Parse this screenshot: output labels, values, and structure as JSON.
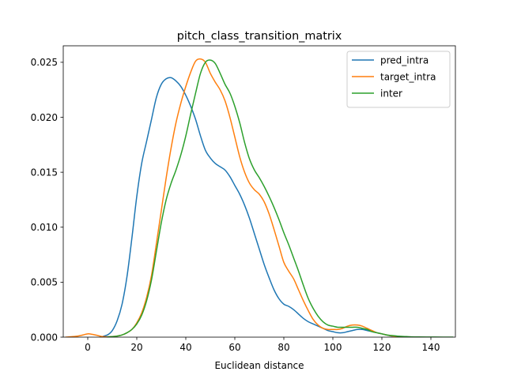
{
  "chart_data": {
    "type": "line",
    "title": "pitch_class_transition_matrix",
    "xlabel": "Euclidean distance",
    "ylabel": "",
    "xlim": [
      -10,
      150
    ],
    "ylim": [
      0,
      0.0265
    ],
    "xticks": [
      0,
      20,
      40,
      60,
      80,
      100,
      120,
      140
    ],
    "yticks": [
      0.0,
      0.005,
      0.01,
      0.015,
      0.02,
      0.025
    ],
    "ytick_format_decimals": 3,
    "grid": false,
    "legend": "top-right",
    "series": [
      {
        "name": "pred_intra",
        "color": "#1f77b4",
        "x": [
          5,
          8,
          10,
          12,
          14,
          16,
          18,
          20,
          22,
          24,
          26,
          28,
          30,
          32,
          34,
          36,
          38,
          40,
          42,
          44,
          46,
          48,
          50,
          52,
          54,
          56,
          58,
          60,
          62,
          64,
          66,
          68,
          70,
          72,
          74,
          76,
          78,
          80,
          82,
          84,
          86,
          88,
          90,
          92,
          94,
          96,
          98,
          100,
          102,
          104,
          106,
          108,
          110,
          112,
          114,
          116,
          118,
          120,
          122,
          124,
          126,
          128,
          130,
          132,
          135
        ],
        "y": [
          0.0,
          0.0002,
          0.0006,
          0.0015,
          0.003,
          0.0055,
          0.009,
          0.0128,
          0.0158,
          0.0178,
          0.0198,
          0.0218,
          0.023,
          0.0235,
          0.0236,
          0.0233,
          0.0228,
          0.022,
          0.021,
          0.0198,
          0.0183,
          0.017,
          0.0163,
          0.0158,
          0.0155,
          0.0152,
          0.0146,
          0.0138,
          0.013,
          0.012,
          0.0108,
          0.0094,
          0.008,
          0.0066,
          0.0054,
          0.0043,
          0.0035,
          0.003,
          0.0028,
          0.0025,
          0.0021,
          0.0017,
          0.0014,
          0.0012,
          0.001,
          0.0008,
          0.0006,
          0.0005,
          0.0004,
          0.0004,
          0.0005,
          0.0006,
          0.0007,
          0.0007,
          0.0006,
          0.0005,
          0.0004,
          0.0003,
          0.0002,
          0.0001,
          0.0001,
          5e-05,
          2e-05,
          1e-05,
          0.0
        ]
      },
      {
        "name": "target_intra",
        "color": "#ff7f0e",
        "x": [
          -9,
          -6,
          -4,
          -2,
          0,
          2,
          4,
          6,
          8,
          10,
          12,
          14,
          16,
          18,
          20,
          22,
          24,
          26,
          28,
          30,
          32,
          34,
          36,
          38,
          40,
          42,
          44,
          46,
          48,
          50,
          52,
          54,
          56,
          58,
          60,
          62,
          64,
          66,
          68,
          70,
          72,
          74,
          76,
          78,
          80,
          82,
          84,
          86,
          88,
          90,
          92,
          94,
          96,
          98,
          100,
          102,
          104,
          106,
          108,
          110,
          112,
          114,
          116,
          118,
          120,
          122,
          124,
          126,
          128,
          130,
          133
        ],
        "y": [
          0.0,
          5e-05,
          0.0001,
          0.0002,
          0.0003,
          0.00025,
          0.00015,
          5e-05,
          3e-05,
          5e-05,
          0.0001,
          0.0002,
          0.0004,
          0.0007,
          0.0013,
          0.0022,
          0.0036,
          0.0056,
          0.0085,
          0.0115,
          0.0145,
          0.0172,
          0.0195,
          0.0213,
          0.0228,
          0.0241,
          0.0251,
          0.0253,
          0.025,
          0.024,
          0.0232,
          0.0225,
          0.0215,
          0.02,
          0.0182,
          0.0164,
          0.015,
          0.014,
          0.0134,
          0.013,
          0.0123,
          0.0112,
          0.0098,
          0.0083,
          0.0068,
          0.006,
          0.0053,
          0.0043,
          0.0033,
          0.0024,
          0.0016,
          0.0011,
          0.0008,
          0.0007,
          0.0007,
          0.0007,
          0.0008,
          0.001,
          0.0011,
          0.0011,
          0.001,
          0.0008,
          0.0006,
          0.0004,
          0.0003,
          0.0002,
          0.00012,
          6e-05,
          3e-05,
          1e-05,
          0.0
        ]
      },
      {
        "name": "inter",
        "color": "#2ca02c",
        "x": [
          8,
          10,
          12,
          14,
          16,
          18,
          20,
          22,
          24,
          26,
          28,
          30,
          32,
          34,
          36,
          38,
          40,
          42,
          44,
          46,
          48,
          50,
          52,
          54,
          56,
          58,
          60,
          62,
          64,
          66,
          68,
          70,
          72,
          74,
          76,
          78,
          80,
          82,
          84,
          86,
          88,
          90,
          92,
          94,
          96,
          98,
          100,
          102,
          104,
          106,
          108,
          110,
          112,
          114,
          116,
          118,
          120,
          122,
          124,
          126,
          128,
          130,
          132,
          135,
          140,
          145,
          149
        ],
        "y": [
          2e-05,
          5e-05,
          0.0001,
          0.0002,
          0.0004,
          0.0007,
          0.0012,
          0.002,
          0.0033,
          0.0052,
          0.0078,
          0.0104,
          0.0125,
          0.014,
          0.0152,
          0.0166,
          0.0183,
          0.0203,
          0.0222,
          0.024,
          0.025,
          0.0252,
          0.0249,
          0.024,
          0.023,
          0.0222,
          0.021,
          0.0195,
          0.0177,
          0.0162,
          0.0152,
          0.0145,
          0.0137,
          0.0128,
          0.0118,
          0.0107,
          0.0095,
          0.0084,
          0.0072,
          0.006,
          0.0047,
          0.0035,
          0.0026,
          0.0019,
          0.0014,
          0.0011,
          0.001,
          0.0009,
          0.0009,
          0.0009,
          0.0009,
          0.0009,
          0.0008,
          0.0007,
          0.0005,
          0.0004,
          0.0003,
          0.0002,
          0.00015,
          0.0001,
          7e-05,
          5e-05,
          3e-05,
          2e-05,
          1e-05,
          0.0,
          0.0
        ]
      }
    ]
  }
}
